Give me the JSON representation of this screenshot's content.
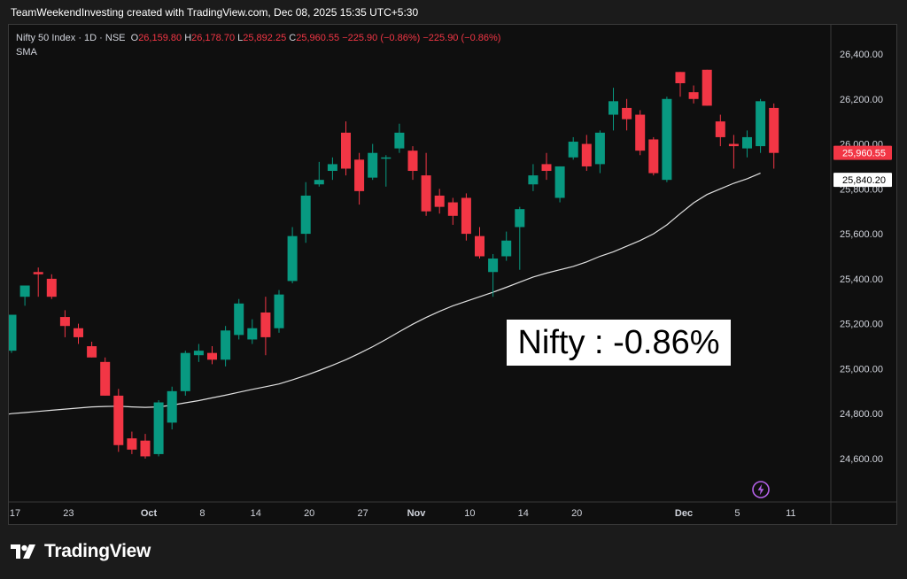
{
  "header": {
    "text": "TeamWeekendInvesting created with TradingView.com, Dec 08, 2025 15:35 UTC+5:30"
  },
  "legend": {
    "symbol": "Nifty 50 Index · 1D · NSE",
    "open_label": "O",
    "open": "26,159.80",
    "high_label": "H",
    "high": "26,178.70",
    "low_label": "L",
    "low": "25,892.25",
    "close_label": "C",
    "close": "25,960.55",
    "change": "−225.90 (−0.86%)",
    "change2": "−225.90 (−0.86%)",
    "indicator": "SMA"
  },
  "annotation": {
    "text": "Nifty : -0.86%"
  },
  "footer": {
    "brand": "TradingView"
  },
  "colors": {
    "up": "#089981",
    "down": "#f23645",
    "sma": "#e0e0e0",
    "background": "#0f0f0f"
  },
  "icons": {
    "footer_logo": "tradingview-logo-icon",
    "alert": "lightning-icon"
  },
  "chart_data": {
    "type": "candlestick",
    "y_axis": {
      "range": [
        24450,
        26500
      ],
      "ticks": [
        24600,
        24800,
        25000,
        25200,
        25400,
        25600,
        25800,
        26000,
        26200,
        26400
      ],
      "tick_labels": [
        "24,600.00",
        "24,800.00",
        "25,000.00",
        "25,200.00",
        "25,400.00",
        "25,600.00",
        "25,800.00",
        "26,000.00",
        "26,200.00",
        "26,400.00"
      ],
      "position": "right"
    },
    "x_axis": {
      "labels": [
        {
          "text": "17",
          "index": 0
        },
        {
          "text": "23",
          "index": 4
        },
        {
          "text": "Oct",
          "index": 10
        },
        {
          "text": "8",
          "index": 14
        },
        {
          "text": "14",
          "index": 18
        },
        {
          "text": "20",
          "index": 22
        },
        {
          "text": "27",
          "index": 26
        },
        {
          "text": "Nov",
          "index": 30
        },
        {
          "text": "10",
          "index": 34
        },
        {
          "text": "14",
          "index": 38
        },
        {
          "text": "20",
          "index": 42
        },
        {
          "text": "Dec",
          "index": 50
        },
        {
          "text": "5",
          "index": 54
        },
        {
          "text": "11",
          "index": 58
        }
      ],
      "bold_labels": [
        "Oct",
        "Nov",
        "Dec"
      ],
      "total_slots": 60
    },
    "candles": [
      {
        "o": 25080,
        "h": 25240,
        "l": 25070,
        "c": 25240
      },
      {
        "o": 25320,
        "h": 25370,
        "l": 25280,
        "c": 25370
      },
      {
        "o": 25430,
        "h": 25450,
        "l": 25320,
        "c": 25420
      },
      {
        "o": 25400,
        "h": 25420,
        "l": 25310,
        "c": 25320
      },
      {
        "o": 25230,
        "h": 25260,
        "l": 25140,
        "c": 25190
      },
      {
        "o": 25180,
        "h": 25200,
        "l": 25110,
        "c": 25140
      },
      {
        "o": 25100,
        "h": 25120,
        "l": 25050,
        "c": 25050
      },
      {
        "o": 25030,
        "h": 25050,
        "l": 24880,
        "c": 24880
      },
      {
        "o": 24880,
        "h": 24910,
        "l": 24630,
        "c": 24660
      },
      {
        "o": 24690,
        "h": 24720,
        "l": 24620,
        "c": 24640
      },
      {
        "o": 24680,
        "h": 24710,
        "l": 24600,
        "c": 24610
      },
      {
        "o": 24620,
        "h": 24860,
        "l": 24610,
        "c": 24850
      },
      {
        "o": 24760,
        "h": 24920,
        "l": 24730,
        "c": 24900
      },
      {
        "o": 24900,
        "h": 25080,
        "l": 24880,
        "c": 25070
      },
      {
        "o": 25060,
        "h": 25110,
        "l": 25030,
        "c": 25080
      },
      {
        "o": 25070,
        "h": 25100,
        "l": 25020,
        "c": 25040
      },
      {
        "o": 25040,
        "h": 25190,
        "l": 25010,
        "c": 25170
      },
      {
        "o": 25150,
        "h": 25310,
        "l": 25130,
        "c": 25290
      },
      {
        "o": 25130,
        "h": 25220,
        "l": 25110,
        "c": 25180
      },
      {
        "o": 25250,
        "h": 25320,
        "l": 25060,
        "c": 25140
      },
      {
        "o": 25180,
        "h": 25350,
        "l": 25160,
        "c": 25330
      },
      {
        "o": 25390,
        "h": 25630,
        "l": 25380,
        "c": 25590
      },
      {
        "o": 25600,
        "h": 25830,
        "l": 25560,
        "c": 25770
      },
      {
        "o": 25820,
        "h": 25920,
        "l": 25810,
        "c": 25840
      },
      {
        "o": 25880,
        "h": 25940,
        "l": 25840,
        "c": 25910
      },
      {
        "o": 26050,
        "h": 26100,
        "l": 25860,
        "c": 25890
      },
      {
        "o": 25930,
        "h": 25960,
        "l": 25730,
        "c": 25790
      },
      {
        "o": 25850,
        "h": 26000,
        "l": 25840,
        "c": 25960
      },
      {
        "o": 25940,
        "h": 25950,
        "l": 25810,
        "c": 25940
      },
      {
        "o": 25980,
        "h": 26090,
        "l": 25960,
        "c": 26050
      },
      {
        "o": 25970,
        "h": 25990,
        "l": 25840,
        "c": 25880
      },
      {
        "o": 25860,
        "h": 25960,
        "l": 25680,
        "c": 25700
      },
      {
        "o": 25770,
        "h": 25800,
        "l": 25690,
        "c": 25720
      },
      {
        "o": 25740,
        "h": 25760,
        "l": 25640,
        "c": 25680
      },
      {
        "o": 25760,
        "h": 25780,
        "l": 25570,
        "c": 25600
      },
      {
        "o": 25590,
        "h": 25630,
        "l": 25490,
        "c": 25500
      },
      {
        "o": 25430,
        "h": 25510,
        "l": 25320,
        "c": 25490
      },
      {
        "o": 25500,
        "h": 25610,
        "l": 25480,
        "c": 25570
      },
      {
        "o": 25630,
        "h": 25720,
        "l": 25440,
        "c": 25710
      },
      {
        "o": 25820,
        "h": 25910,
        "l": 25790,
        "c": 25860
      },
      {
        "o": 25910,
        "h": 25960,
        "l": 25840,
        "c": 25880
      },
      {
        "o": 25760,
        "h": 25900,
        "l": 25740,
        "c": 25900
      },
      {
        "o": 25940,
        "h": 26030,
        "l": 25930,
        "c": 26010
      },
      {
        "o": 26000,
        "h": 26040,
        "l": 25880,
        "c": 25900
      },
      {
        "o": 25910,
        "h": 26060,
        "l": 25870,
        "c": 26050
      },
      {
        "o": 26130,
        "h": 26250,
        "l": 26060,
        "c": 26190
      },
      {
        "o": 26160,
        "h": 26200,
        "l": 26060,
        "c": 26110
      },
      {
        "o": 26130,
        "h": 26150,
        "l": 25950,
        "c": 25970
      },
      {
        "o": 26020,
        "h": 26030,
        "l": 25860,
        "c": 25870
      },
      {
        "o": 25840,
        "h": 26210,
        "l": 25830,
        "c": 26200
      },
      {
        "o": 26320,
        "h": 26310,
        "l": 26210,
        "c": 26270
      },
      {
        "o": 26230,
        "h": 26260,
        "l": 26180,
        "c": 26200
      },
      {
        "o": 26330,
        "h": 26330,
        "l": 26170,
        "c": 26170
      },
      {
        "o": 26100,
        "h": 26130,
        "l": 25990,
        "c": 26030
      },
      {
        "o": 26000,
        "h": 26040,
        "l": 25890,
        "c": 25990
      },
      {
        "o": 25980,
        "h": 26060,
        "l": 25940,
        "c": 26030
      },
      {
        "o": 25990,
        "h": 26200,
        "l": 25960,
        "c": 26190
      },
      {
        "o": 26160,
        "h": 26180,
        "l": 25890,
        "c": 25960
      }
    ],
    "sma": [
      24800,
      24805,
      24810,
      24815,
      24820,
      24825,
      24830,
      24832,
      24833,
      24830,
      24828,
      24830,
      24838,
      24848,
      24858,
      24870,
      24882,
      24895,
      24908,
      24920,
      24932,
      24950,
      24970,
      24992,
      25015,
      25040,
      25068,
      25098,
      25130,
      25165,
      25198,
      25228,
      25255,
      25280,
      25300,
      25320,
      25340,
      25362,
      25385,
      25408,
      25425,
      25440,
      25455,
      25475,
      25500,
      25520,
      25545,
      25570,
      25600,
      25640,
      25690,
      25738,
      25775,
      25800,
      25825,
      25845,
      25870
    ],
    "price_labels": [
      {
        "text": "25,960.55",
        "value": 25960.55,
        "style": "red"
      },
      {
        "text": "25,840.20",
        "value": 25840.2,
        "style": "white"
      }
    ]
  }
}
